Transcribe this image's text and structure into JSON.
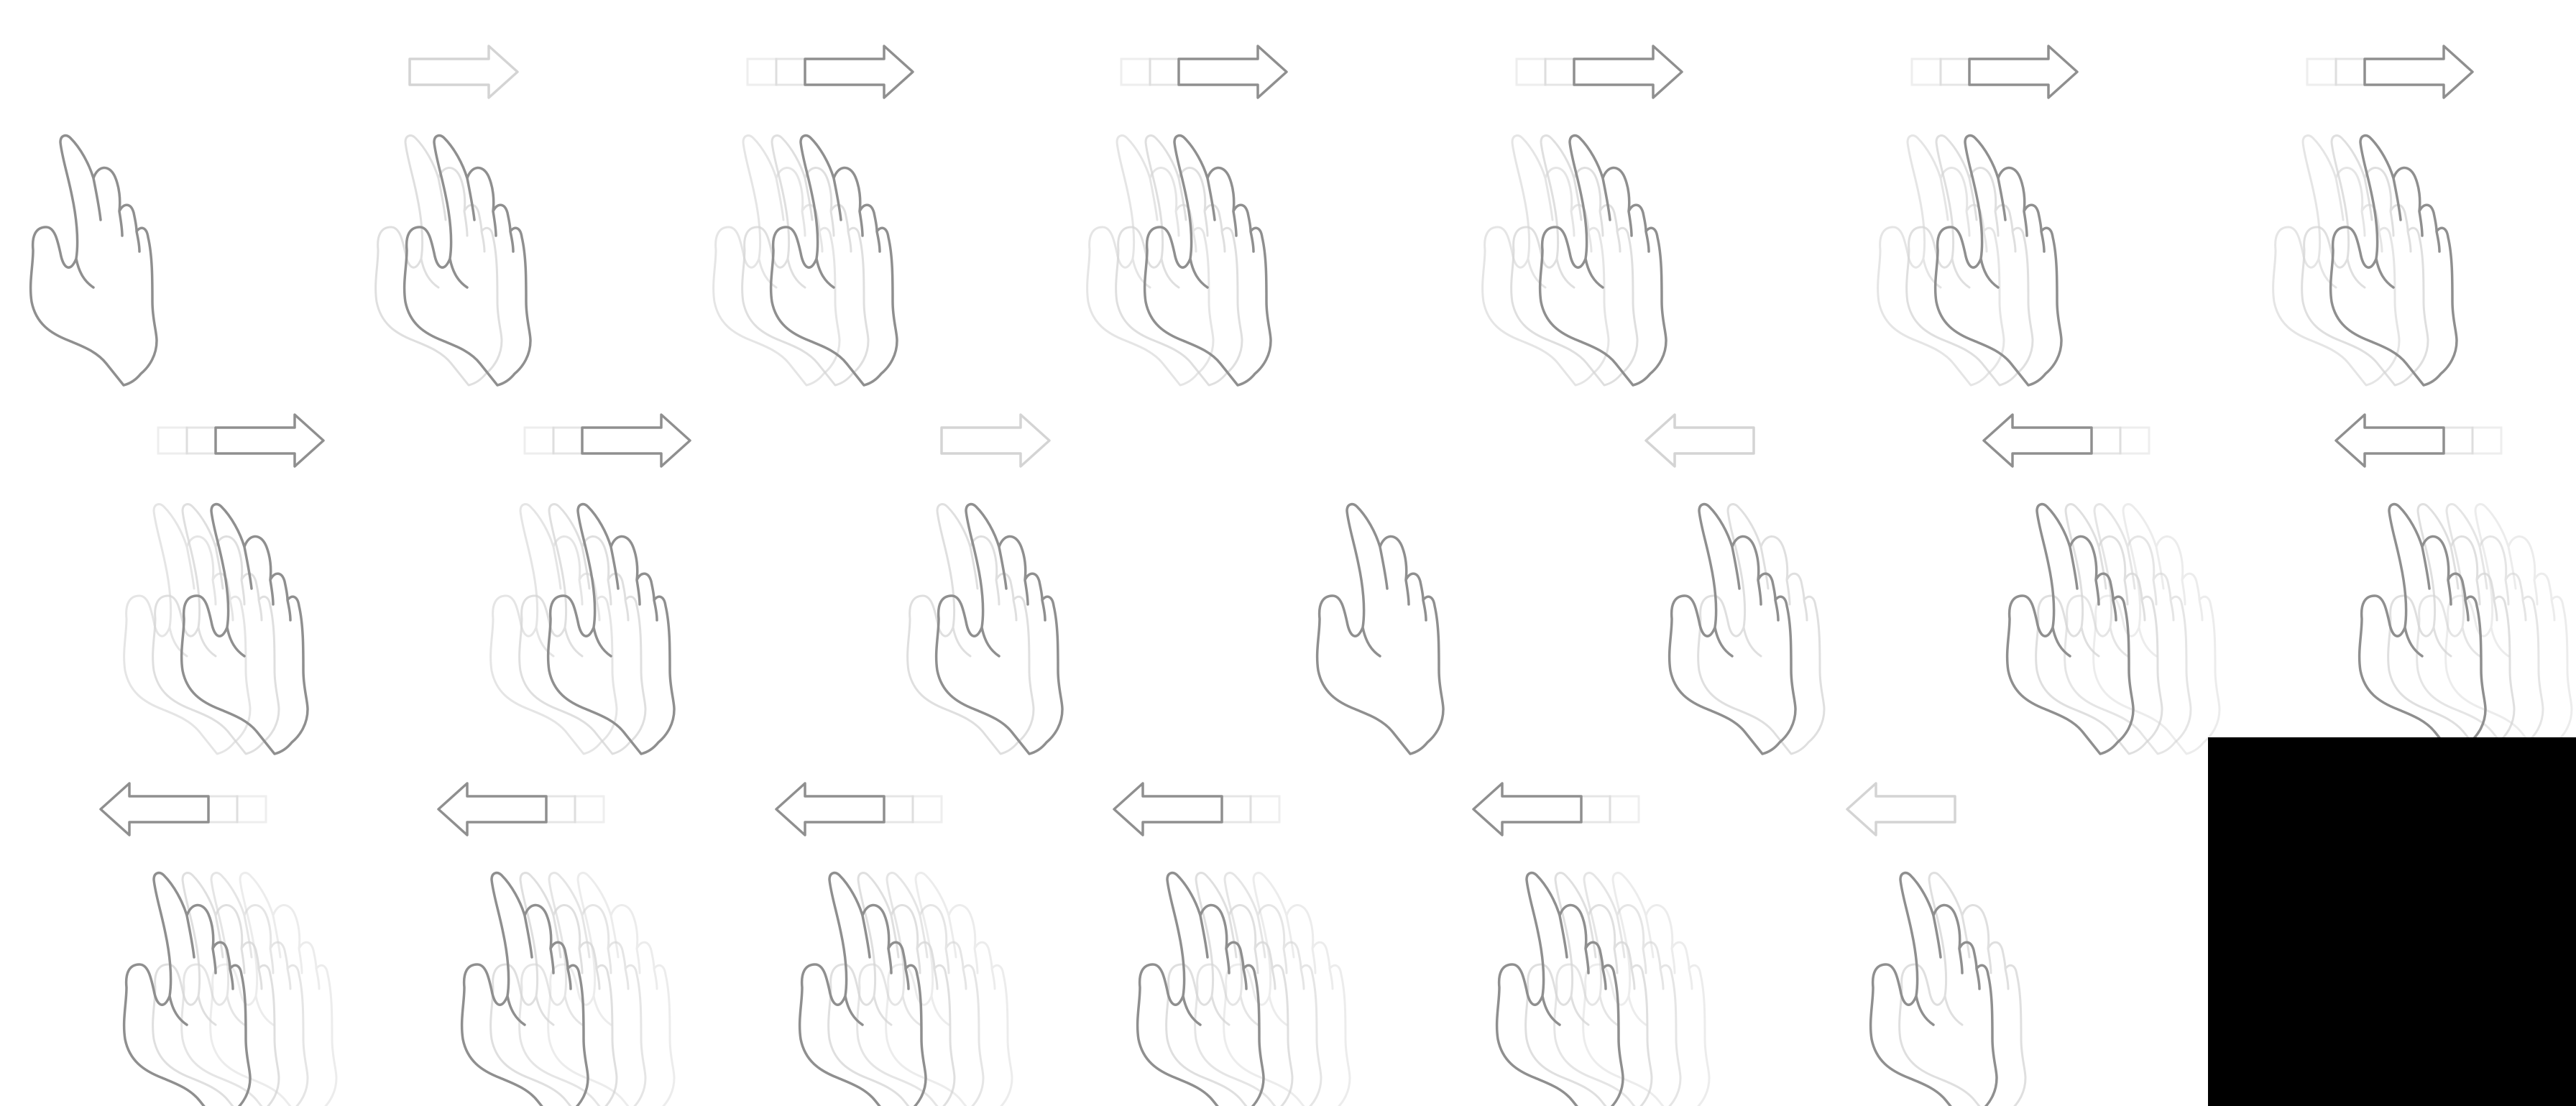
{
  "sheet": {
    "background": "#ffffff",
    "stroke_color": "#8f8f8f",
    "ghost_color": "#d4d4d4",
    "filler_color": "#000000",
    "frames": [
      {
        "icon": "hand-icon",
        "motion": "none",
        "trail": 0,
        "arrow": "none",
        "arrow_level": 0
      },
      {
        "icon": "hand-icon",
        "motion": "right",
        "trail": 1,
        "arrow": "right",
        "arrow_level": 0
      },
      {
        "icon": "hand-icon",
        "motion": "right",
        "trail": 2,
        "arrow": "right",
        "arrow_level": 1
      },
      {
        "icon": "hand-icon",
        "motion": "right",
        "trail": 2,
        "arrow": "right",
        "arrow_level": 1
      },
      {
        "icon": "hand-icon",
        "motion": "right",
        "trail": 2,
        "arrow": "right",
        "arrow_level": 1
      },
      {
        "icon": "hand-icon",
        "motion": "right",
        "trail": 2,
        "arrow": "right",
        "arrow_level": 1
      },
      {
        "icon": "hand-icon",
        "motion": "right",
        "trail": 2,
        "arrow": "right",
        "arrow_level": 1
      },
      {
        "icon": "hand-icon",
        "motion": "right",
        "trail": 2,
        "arrow": "right",
        "arrow_level": 1
      },
      {
        "icon": "hand-icon",
        "motion": "right",
        "trail": 2,
        "arrow": "right",
        "arrow_level": 1
      },
      {
        "icon": "hand-icon",
        "motion": "right",
        "trail": 1,
        "arrow": "right",
        "arrow_level": 0
      },
      {
        "icon": "hand-icon",
        "motion": "none",
        "trail": 0,
        "arrow": "none",
        "arrow_level": 0
      },
      {
        "icon": "hand-icon",
        "motion": "left",
        "trail": 1,
        "arrow": "left",
        "arrow_level": 0
      },
      {
        "icon": "hand-icon",
        "motion": "left",
        "trail": 3,
        "arrow": "left",
        "arrow_level": 1
      },
      {
        "icon": "hand-icon",
        "motion": "left",
        "trail": 3,
        "arrow": "left",
        "arrow_level": 1
      },
      {
        "icon": "hand-icon",
        "motion": "left",
        "trail": 3,
        "arrow": "left",
        "arrow_level": 1
      },
      {
        "icon": "hand-icon",
        "motion": "left",
        "trail": 3,
        "arrow": "left",
        "arrow_level": 1
      },
      {
        "icon": "hand-icon",
        "motion": "left",
        "trail": 3,
        "arrow": "left",
        "arrow_level": 1
      },
      {
        "icon": "hand-icon",
        "motion": "left",
        "trail": 3,
        "arrow": "left",
        "arrow_level": 1
      },
      {
        "icon": "hand-icon",
        "motion": "left",
        "trail": 3,
        "arrow": "left",
        "arrow_level": 1
      },
      {
        "icon": "hand-icon",
        "motion": "left",
        "trail": 1,
        "arrow": "left",
        "arrow_level": 0
      }
    ]
  }
}
